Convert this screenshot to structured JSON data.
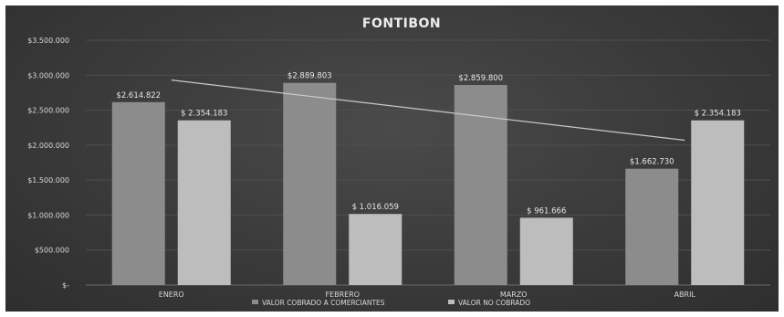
{
  "chart_data": {
    "type": "bar",
    "title": "FONTIBON",
    "categories": [
      "ENERO",
      "FEBRERO",
      "MARZO",
      "ABRIL"
    ],
    "series": [
      {
        "name": "VALOR COBRADO A COMERCIANTES",
        "values": [
          2614822,
          2889803,
          2859800,
          1662730
        ],
        "labels": [
          "$2.614.822",
          "$2.889.803",
          "$2.859.800",
          "$1.662.730"
        ],
        "color": "#8c8c8c"
      },
      {
        "name": "VALOR NO COBRADO",
        "values": [
          2354183,
          1016059,
          961666,
          2354183
        ],
        "labels": [
          "$ 2.354.183",
          "$ 1.016.059",
          "$ 961.666",
          "$ 2.354.183"
        ],
        "color": "#bdbdbd"
      }
    ],
    "trendline": {
      "series": "VALOR COBRADO A COMERCIANTES",
      "values": [
        2930000,
        2070000
      ],
      "color": "#c8c8c8"
    },
    "ylim": [
      0,
      3500000
    ],
    "yticks": [
      0,
      500000,
      1000000,
      1500000,
      2000000,
      2500000,
      3000000,
      3500000
    ],
    "ytick_labels": [
      "$-",
      "$500.000",
      "$1.000.000",
      "$1.500.000",
      "$2.000.000",
      "$2.500.000",
      "$3.000.000",
      "$3.500.000"
    ],
    "grid": true,
    "legend_position": "bottom"
  }
}
